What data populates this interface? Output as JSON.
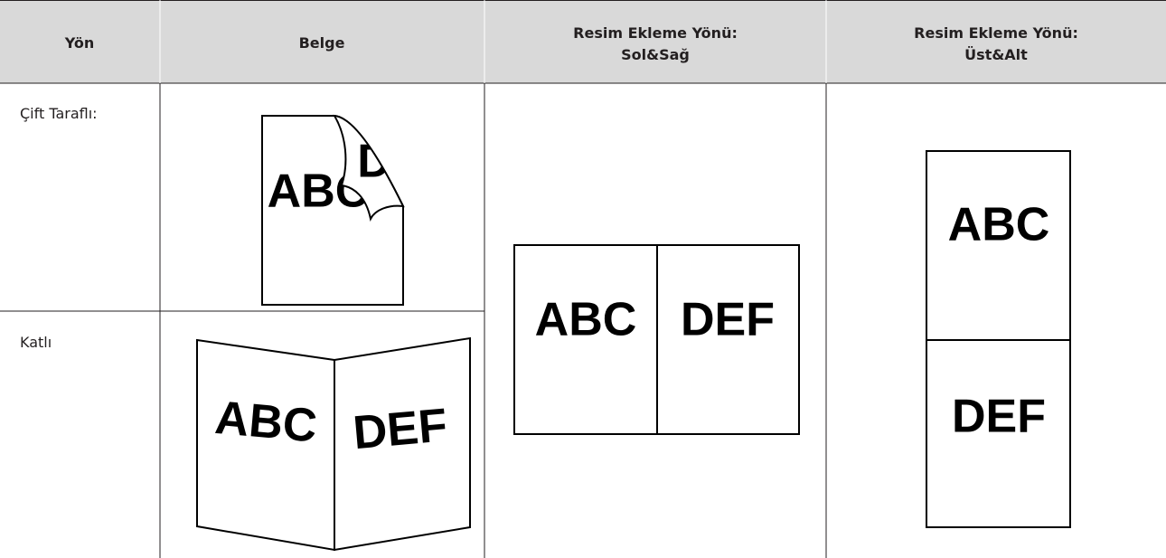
{
  "table": {
    "header": [
      [
        "Yön"
      ],
      [
        "Belge"
      ],
      [
        "Resim Ekleme Yönü:",
        "Sol&Sağ"
      ],
      [
        "Resim Ekleme Yönü:",
        "Üst&Alt"
      ]
    ],
    "rows": [
      "Çift Taraflı:",
      "Katlı"
    ],
    "illustrations": {
      "duplex": {
        "front": "ABC",
        "back": "D"
      },
      "folded": {
        "left": "ABC",
        "right": "DEF"
      },
      "left_right": {
        "left": "ABC",
        "right": "DEF"
      },
      "top_bottom": {
        "top": "ABC",
        "bottom": "DEF"
      }
    }
  }
}
